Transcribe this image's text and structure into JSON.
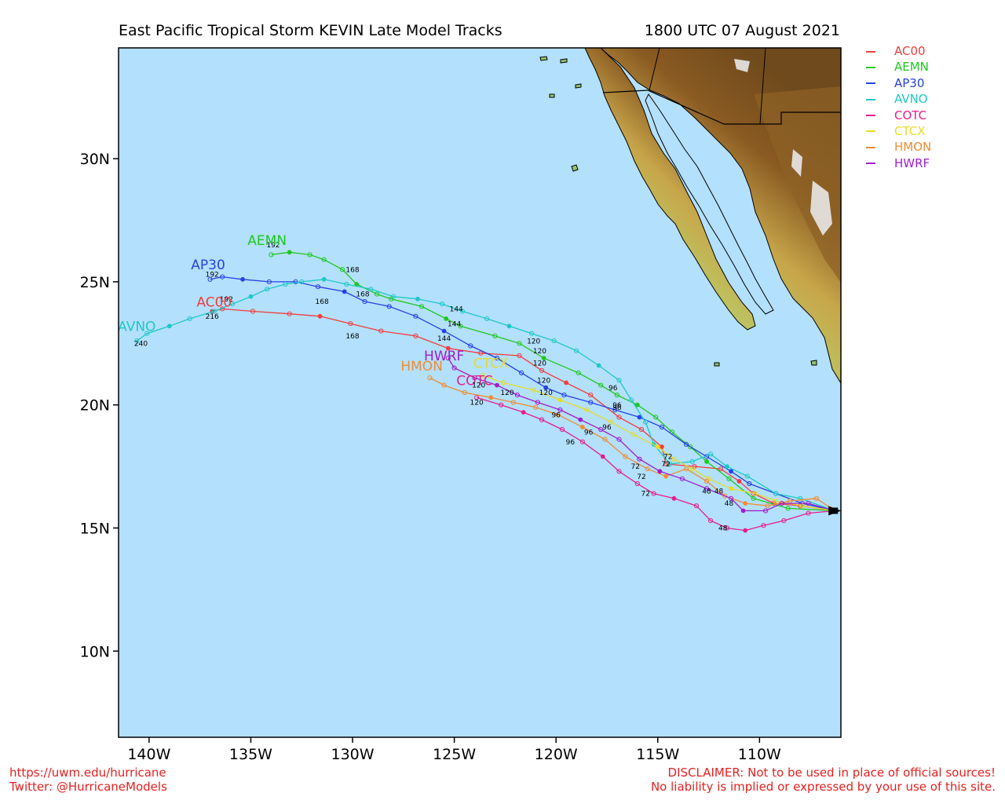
{
  "title": "East Pacific Tropical Storm KEVIN Late Model Tracks",
  "datetime": "1800 UTC 07 August 2021",
  "map": {
    "lon_range": [
      -141.5,
      -106.0
    ],
    "lat_range": [
      6.5,
      34.5
    ],
    "ocean_color": "#b3e0fc",
    "x_ticks": [
      {
        "lon": -140,
        "label": "140W"
      },
      {
        "lon": -135,
        "label": "135W"
      },
      {
        "lon": -130,
        "label": "130W"
      },
      {
        "lon": -125,
        "label": "125W"
      },
      {
        "lon": -120,
        "label": "120W"
      },
      {
        "lon": -115,
        "label": "115W"
      },
      {
        "lon": -110,
        "label": "110W"
      }
    ],
    "y_ticks": [
      {
        "lat": 10,
        "label": "10N"
      },
      {
        "lat": 15,
        "label": "15N"
      },
      {
        "lat": 20,
        "label": "20N"
      },
      {
        "lat": 25,
        "label": "25N"
      },
      {
        "lat": 30,
        "label": "30N"
      }
    ]
  },
  "current_position": {
    "lon": -106.3,
    "lat": 15.7
  },
  "models": [
    {
      "name": "AC00",
      "color": "#f23c3c",
      "track": [
        [
          -106.3,
          15.7
        ],
        [
          -108.0,
          15.9
        ],
        [
          -109.3,
          16.0
        ],
        [
          -110.3,
          16.4
        ],
        [
          -111.0,
          16.9
        ],
        [
          -111.9,
          17.4
        ],
        [
          -113.2,
          17.5
        ],
        [
          -114.6,
          17.6
        ],
        [
          -114.8,
          18.3
        ],
        [
          -115.8,
          19.0
        ],
        [
          -116.9,
          19.5
        ],
        [
          -118.3,
          20.4
        ],
        [
          -119.5,
          20.9
        ],
        [
          -120.7,
          21.4
        ],
        [
          -121.8,
          22.0
        ],
        [
          -123.7,
          22.1
        ],
        [
          -125.3,
          22.3
        ],
        [
          -126.9,
          22.8
        ],
        [
          -128.6,
          23.0
        ],
        [
          -130.1,
          23.3
        ],
        [
          -131.6,
          23.6
        ],
        [
          -133.1,
          23.7
        ],
        [
          -134.9,
          23.8
        ],
        [
          -136.4,
          23.9
        ],
        [
          -136.9,
          23.8
        ]
      ],
      "labels": [
        {
          "t": "72",
          "lon": -114.5,
          "lat": 17.8
        },
        {
          "t": "96",
          "lon": -117.0,
          "lat": 19.8
        },
        {
          "t": "120",
          "lon": -120.8,
          "lat": 21.6
        },
        {
          "t": "168",
          "lon": -130.0,
          "lat": 22.7
        },
        {
          "t": "192",
          "lon": -136.2,
          "lat": 24.2
        }
      ],
      "name_pos": {
        "lon": -136.8,
        "lat": 24.0
      }
    },
    {
      "name": "AEMN",
      "color": "#1ec81e",
      "track": [
        [
          -106.3,
          15.7
        ],
        [
          -108.6,
          15.8
        ],
        [
          -110.3,
          16.2
        ],
        [
          -111.5,
          17.0
        ],
        [
          -112.6,
          17.7
        ],
        [
          -113.4,
          18.3
        ],
        [
          -114.3,
          18.9
        ],
        [
          -115.1,
          19.5
        ],
        [
          -116.0,
          20.0
        ],
        [
          -117.0,
          20.4
        ],
        [
          -117.8,
          20.8
        ],
        [
          -118.9,
          21.3
        ],
        [
          -120.6,
          21.9
        ],
        [
          -121.8,
          22.5
        ],
        [
          -123.0,
          22.8
        ],
        [
          -124.7,
          23.2
        ],
        [
          -125.4,
          23.5
        ],
        [
          -126.6,
          24.0
        ],
        [
          -128.1,
          24.3
        ],
        [
          -128.8,
          24.5
        ],
        [
          -129.8,
          24.9
        ],
        [
          -130.5,
          25.5
        ],
        [
          -131.4,
          25.9
        ],
        [
          -132.1,
          26.1
        ],
        [
          -133.1,
          26.2
        ],
        [
          -134.0,
          26.1
        ]
      ],
      "labels": [
        {
          "t": "96",
          "lon": -117.2,
          "lat": 20.6
        },
        {
          "t": "120",
          "lon": -120.8,
          "lat": 22.1
        },
        {
          "t": "144",
          "lon": -125.0,
          "lat": 23.2
        },
        {
          "t": "168",
          "lon": -130.0,
          "lat": 25.4
        },
        {
          "t": "192",
          "lon": -133.9,
          "lat": 26.4
        }
      ],
      "name_pos": {
        "lon": -134.2,
        "lat": 26.5
      }
    },
    {
      "name": "AP30",
      "color": "#2840e6",
      "track": [
        [
          -106.3,
          15.7
        ],
        [
          -107.9,
          16.0
        ],
        [
          -109.2,
          16.4
        ],
        [
          -110.5,
          16.8
        ],
        [
          -111.4,
          17.3
        ],
        [
          -112.6,
          17.9
        ],
        [
          -113.6,
          18.4
        ],
        [
          -114.8,
          19.1
        ],
        [
          -115.9,
          19.5
        ],
        [
          -117.1,
          19.8
        ],
        [
          -118.3,
          20.1
        ],
        [
          -119.6,
          20.4
        ],
        [
          -120.5,
          20.7
        ],
        [
          -121.7,
          21.3
        ],
        [
          -122.9,
          21.9
        ],
        [
          -124.2,
          22.4
        ],
        [
          -125.5,
          23.0
        ],
        [
          -126.9,
          23.6
        ],
        [
          -128.2,
          24.0
        ],
        [
          -129.4,
          24.2
        ],
        [
          -130.4,
          24.6
        ],
        [
          -131.7,
          24.8
        ],
        [
          -132.8,
          25.0
        ],
        [
          -134.1,
          25.0
        ],
        [
          -135.4,
          25.1
        ],
        [
          -136.4,
          25.2
        ],
        [
          -137.0,
          25.1
        ]
      ],
      "labels": [
        {
          "t": "96",
          "lon": -117.0,
          "lat": 19.9
        },
        {
          "t": "120",
          "lon": -120.6,
          "lat": 20.9
        },
        {
          "t": "144",
          "lon": -125.5,
          "lat": 22.6
        },
        {
          "t": "168",
          "lon": -131.5,
          "lat": 24.1
        },
        {
          "t": "192",
          "lon": -136.9,
          "lat": 25.2
        }
      ],
      "name_pos": {
        "lon": -137.1,
        "lat": 25.5
      }
    },
    {
      "name": "AVNO",
      "color": "#1ec8c8",
      "track": [
        [
          -106.3,
          15.7
        ],
        [
          -108.0,
          16.2
        ],
        [
          -109.2,
          16.4
        ],
        [
          -110.6,
          17.1
        ],
        [
          -111.6,
          17.5
        ],
        [
          -112.4,
          18.0
        ],
        [
          -113.3,
          17.7
        ],
        [
          -114.4,
          17.6
        ],
        [
          -115.2,
          18.4
        ],
        [
          -115.6,
          19.3
        ],
        [
          -116.3,
          20.2
        ],
        [
          -116.9,
          21.0
        ],
        [
          -117.9,
          21.6
        ],
        [
          -119.0,
          22.2
        ],
        [
          -120.1,
          22.6
        ],
        [
          -121.2,
          22.9
        ],
        [
          -122.3,
          23.2
        ],
        [
          -123.4,
          23.5
        ],
        [
          -124.6,
          23.8
        ],
        [
          -125.6,
          24.1
        ],
        [
          -126.8,
          24.3
        ],
        [
          -128.0,
          24.4
        ],
        [
          -129.1,
          24.7
        ],
        [
          -130.3,
          24.9
        ],
        [
          -131.4,
          25.1
        ],
        [
          -132.5,
          25.0
        ],
        [
          -133.3,
          24.9
        ],
        [
          -134.2,
          24.7
        ],
        [
          -135.0,
          24.4
        ],
        [
          -135.9,
          24.1
        ],
        [
          -136.8,
          23.8
        ],
        [
          -138.0,
          23.5
        ],
        [
          -139.0,
          23.2
        ],
        [
          -140.1,
          22.9
        ],
        [
          -140.6,
          22.6
        ]
      ],
      "labels": [
        {
          "t": "120",
          "lon": -121.1,
          "lat": 22.5
        },
        {
          "t": "144",
          "lon": -124.9,
          "lat": 23.8
        },
        {
          "t": "168",
          "lon": -129.5,
          "lat": 24.4
        },
        {
          "t": "216",
          "lon": -136.9,
          "lat": 23.5
        },
        {
          "t": "240",
          "lon": -140.4,
          "lat": 22.4
        }
      ],
      "name_pos": {
        "lon": -140.6,
        "lat": 23.0
      }
    },
    {
      "name": "COTC",
      "color": "#e61e8c",
      "track": [
        [
          -106.3,
          15.7
        ],
        [
          -107.6,
          15.6
        ],
        [
          -108.8,
          15.3
        ],
        [
          -109.8,
          15.1
        ],
        [
          -110.7,
          14.9
        ],
        [
          -111.6,
          15.0
        ],
        [
          -112.4,
          15.3
        ],
        [
          -113.1,
          15.9
        ],
        [
          -114.2,
          16.2
        ],
        [
          -115.2,
          16.4
        ],
        [
          -116.0,
          16.8
        ],
        [
          -116.9,
          17.3
        ],
        [
          -117.7,
          17.9
        ],
        [
          -118.7,
          18.5
        ],
        [
          -119.7,
          19.0
        ],
        [
          -120.7,
          19.4
        ],
        [
          -121.6,
          19.7
        ],
        [
          -122.7,
          20.0
        ],
        [
          -123.9,
          20.3
        ]
      ],
      "labels": [
        {
          "t": "48",
          "lon": -111.8,
          "lat": 14.9
        },
        {
          "t": "72",
          "lon": -115.6,
          "lat": 16.3
        },
        {
          "t": "96",
          "lon": -119.3,
          "lat": 18.4
        },
        {
          "t": "120",
          "lon": -123.9,
          "lat": 20.0
        }
      ],
      "name_pos": {
        "lon": -124.0,
        "lat": 20.8
      }
    },
    {
      "name": "CTCX",
      "color": "#e6dc28",
      "track": [
        [
          -106.3,
          15.7
        ],
        [
          -107.9,
          15.9
        ],
        [
          -109.2,
          16.1
        ],
        [
          -110.2,
          16.4
        ],
        [
          -111.4,
          16.6
        ],
        [
          -112.5,
          17.0
        ],
        [
          -113.3,
          17.4
        ],
        [
          -114.2,
          17.8
        ],
        [
          -115.0,
          18.3
        ],
        [
          -116.2,
          18.8
        ],
        [
          -117.3,
          19.3
        ],
        [
          -118.5,
          19.8
        ],
        [
          -119.8,
          20.2
        ],
        [
          -121.1,
          20.6
        ],
        [
          -122.6,
          20.9
        ],
        [
          -123.6,
          21.2
        ]
      ],
      "labels": [
        {
          "t": "48",
          "lon": -112.0,
          "lat": 16.4
        },
        {
          "t": "72",
          "lon": -114.6,
          "lat": 17.5
        },
        {
          "t": "96",
          "lon": -117.5,
          "lat": 19.0
        },
        {
          "t": "120",
          "lon": -120.5,
          "lat": 20.4
        }
      ],
      "name_pos": {
        "lon": -123.2,
        "lat": 21.5
      }
    },
    {
      "name": "HMON",
      "color": "#f08c32",
      "track": [
        [
          -106.3,
          15.7
        ],
        [
          -107.2,
          16.2
        ],
        [
          -108.5,
          16.1
        ],
        [
          -109.6,
          15.9
        ],
        [
          -110.7,
          16.0
        ],
        [
          -111.7,
          16.3
        ],
        [
          -112.6,
          16.9
        ],
        [
          -113.6,
          17.4
        ],
        [
          -114.6,
          17.1
        ],
        [
          -115.5,
          17.4
        ],
        [
          -116.6,
          17.9
        ],
        [
          -117.6,
          18.6
        ],
        [
          -118.7,
          19.1
        ],
        [
          -119.9,
          19.6
        ],
        [
          -121.0,
          19.9
        ],
        [
          -122.1,
          20.1
        ],
        [
          -123.2,
          20.3
        ],
        [
          -124.5,
          20.5
        ],
        [
          -125.5,
          20.8
        ],
        [
          -126.2,
          21.1
        ]
      ],
      "labels": [
        {
          "t": "48",
          "lon": -112.6,
          "lat": 16.4
        },
        {
          "t": "72",
          "lon": -115.8,
          "lat": 17.0
        },
        {
          "t": "96",
          "lon": -118.4,
          "lat": 18.8
        },
        {
          "t": "120",
          "lon": -122.4,
          "lat": 20.4
        }
      ],
      "name_pos": {
        "lon": -126.6,
        "lat": 21.4
      }
    },
    {
      "name": "HWRF",
      "color": "#a01ecc",
      "track": [
        [
          -106.3,
          15.7
        ],
        [
          -107.6,
          16.0
        ],
        [
          -108.9,
          16.0
        ],
        [
          -109.7,
          15.7
        ],
        [
          -110.8,
          15.7
        ],
        [
          -111.4,
          16.2
        ],
        [
          -112.6,
          16.6
        ],
        [
          -113.8,
          17.0
        ],
        [
          -114.9,
          17.3
        ],
        [
          -115.9,
          17.8
        ],
        [
          -116.9,
          18.6
        ],
        [
          -117.8,
          19.0
        ],
        [
          -118.8,
          19.4
        ],
        [
          -119.8,
          19.8
        ],
        [
          -120.9,
          20.1
        ],
        [
          -121.9,
          20.4
        ],
        [
          -122.9,
          20.8
        ],
        [
          -124.0,
          21.1
        ],
        [
          -125.0,
          21.5
        ],
        [
          -125.3,
          21.9
        ]
      ],
      "labels": [
        {
          "t": "48",
          "lon": -111.5,
          "lat": 15.9
        },
        {
          "t": "72",
          "lon": -116.1,
          "lat": 17.4
        },
        {
          "t": "96",
          "lon": -120.0,
          "lat": 19.5
        },
        {
          "t": "120",
          "lon": -123.8,
          "lat": 20.7
        }
      ],
      "name_pos": {
        "lon": -125.5,
        "lat": 21.8
      }
    }
  ],
  "footer_left": [
    "https://uwm.edu/hurricane",
    "Twitter: @HurricaneModels"
  ],
  "footer_right": [
    "DISCLAIMER: Not to be used in place of official sources!",
    "No liability is implied or expressed by your use of this site."
  ]
}
